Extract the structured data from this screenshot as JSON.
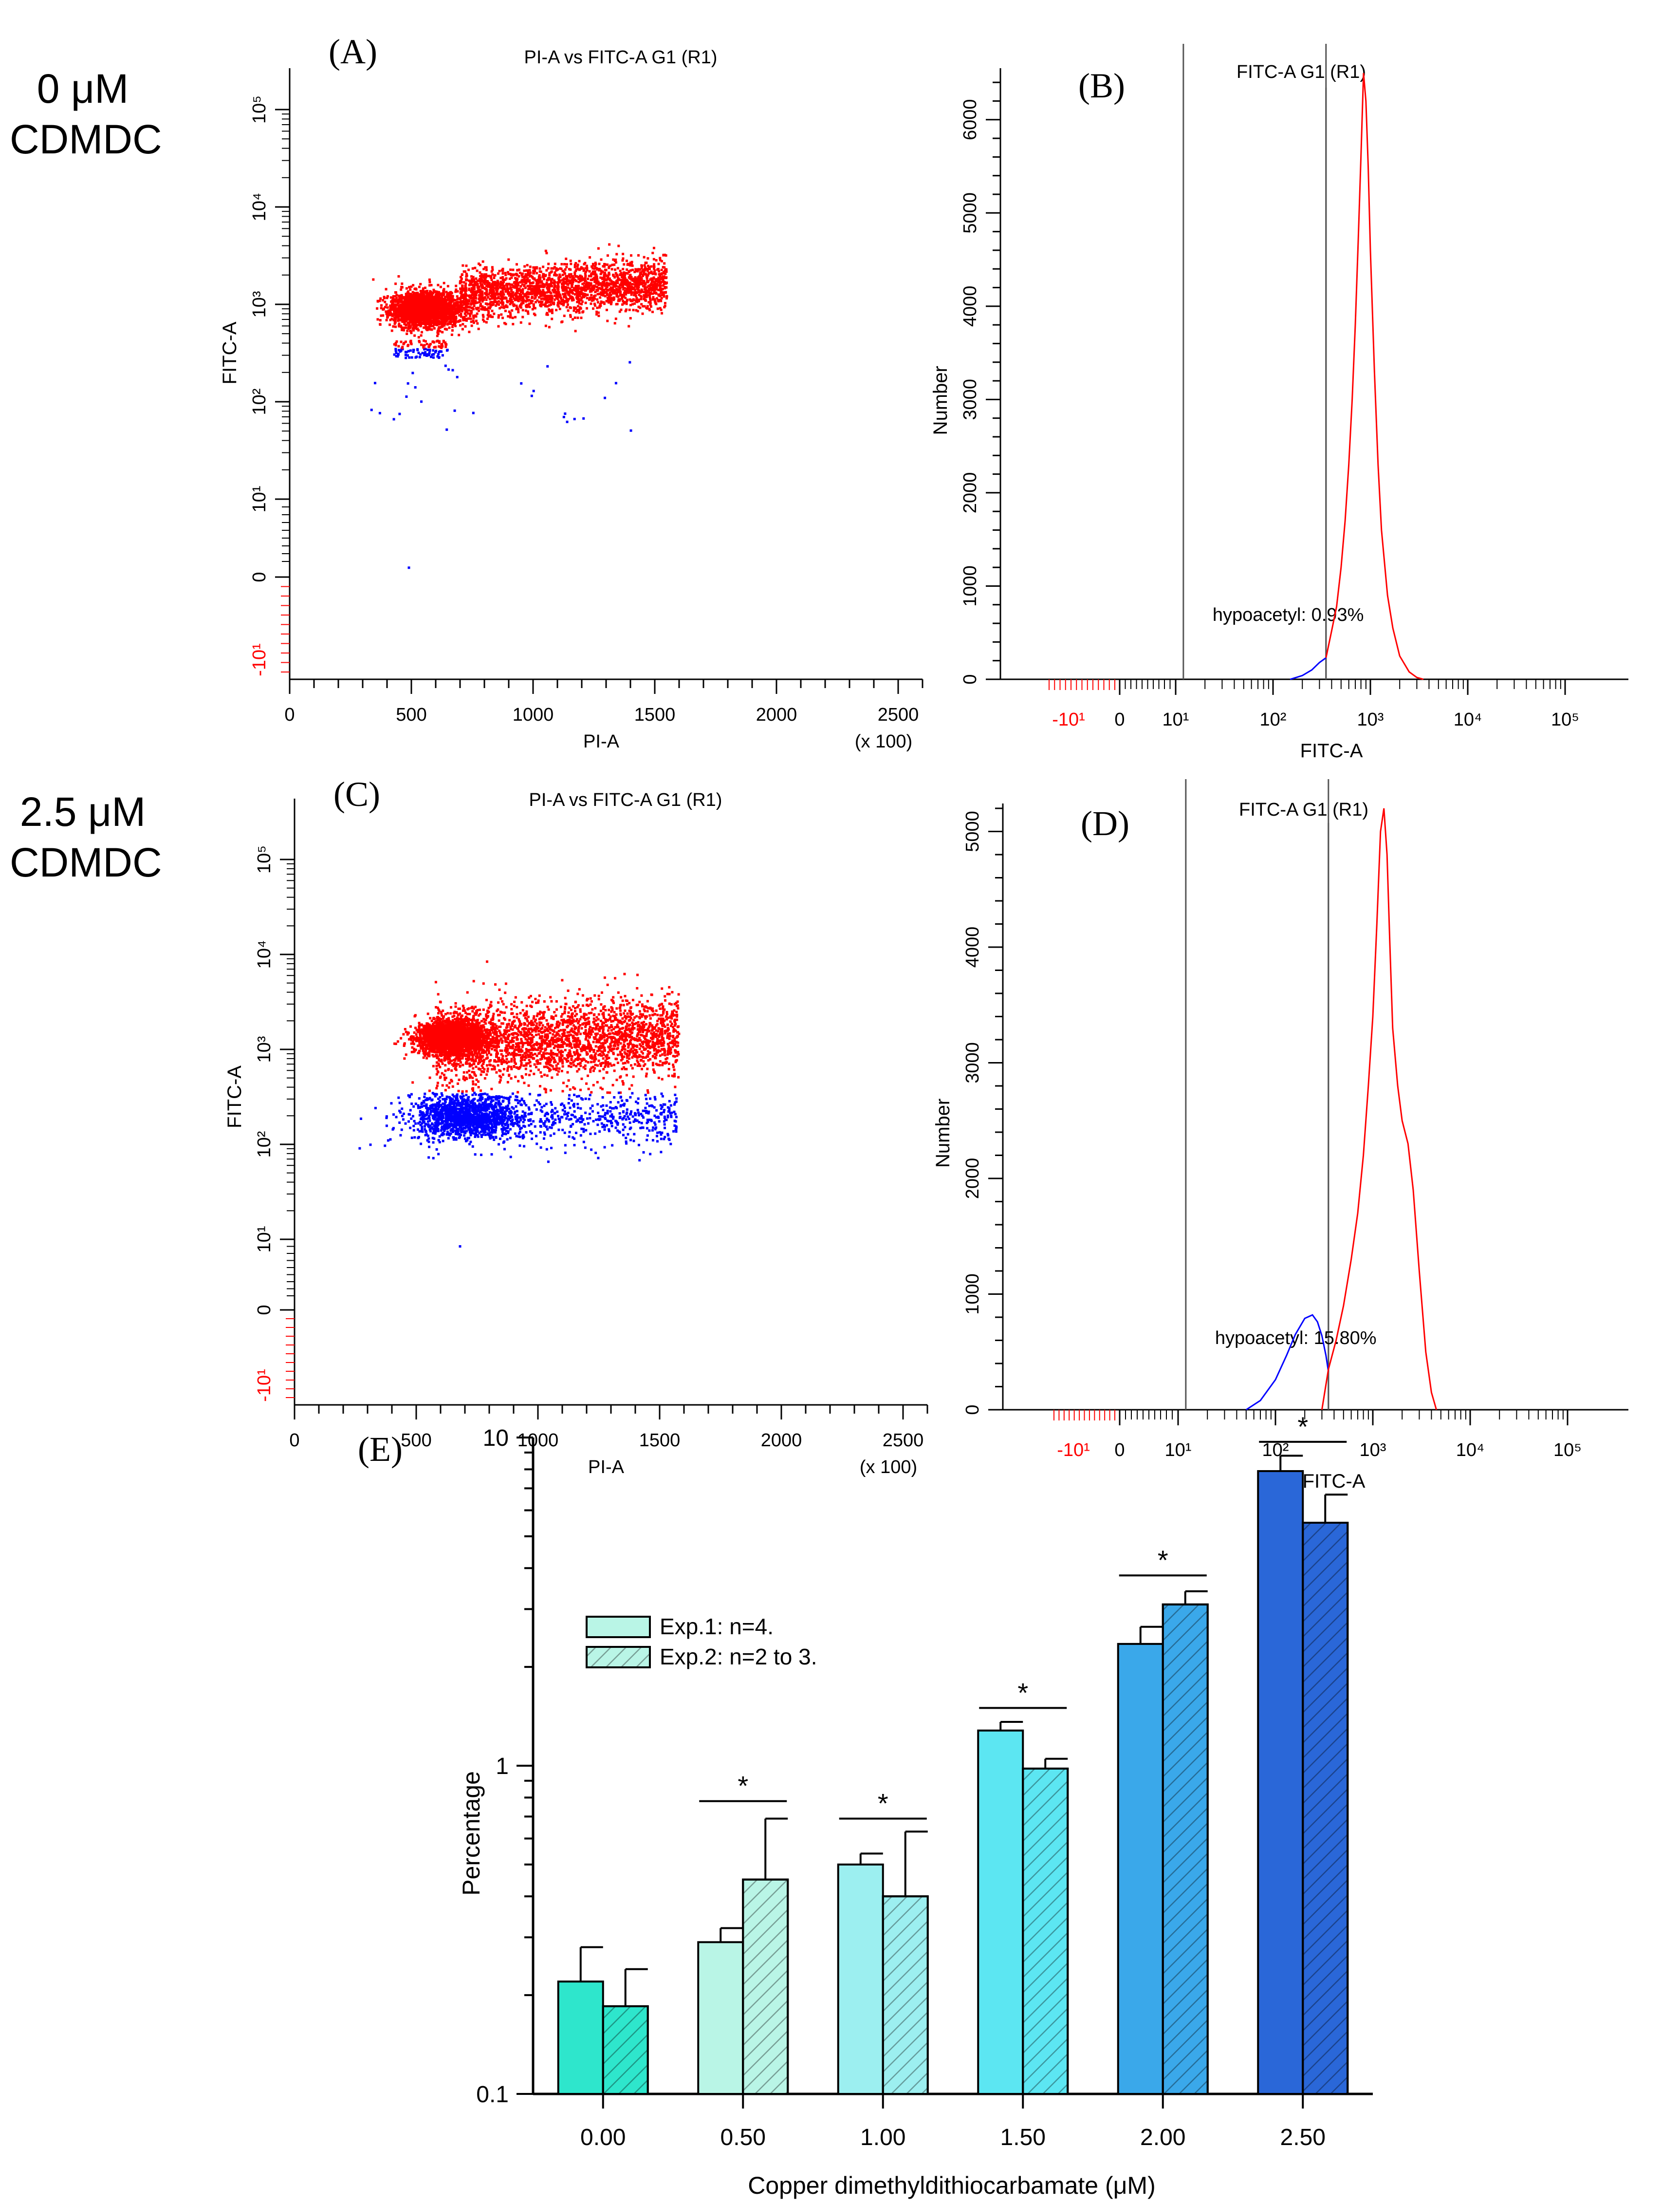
{
  "row_labels": {
    "top": [
      "0 μM",
      "CDMDC"
    ],
    "bottom": [
      "2.5 μM",
      "CDMDC"
    ]
  },
  "chart_data": [
    {
      "id": "A",
      "panel_label": "(A)",
      "type": "scatter",
      "title": "PI-A vs FITC-A  G1 (R1)",
      "xlabel": "PI-A",
      "xlabel_note": "(x 100)",
      "ylabel": "FITC-A",
      "xlim": [
        0,
        2600
      ],
      "x_ticks": [
        "0",
        "500",
        "1000",
        "1500",
        "2000",
        "2500"
      ],
      "y_ticks": [
        "-10¹",
        "0",
        "10¹",
        "10²",
        "10³",
        "10⁴",
        "10⁵"
      ],
      "gate_fitc": 350,
      "colors": {
        "above_gate": "#ff0000",
        "below_gate": "#0000ff"
      }
    },
    {
      "id": "B",
      "panel_label": "(B)",
      "type": "line",
      "title": "FITC-A  G1 (R1)",
      "xlabel": "FITC-A",
      "ylabel": "Number",
      "ylim": [
        0,
        6500
      ],
      "y_ticks": [
        0,
        1000,
        2000,
        3000,
        4000,
        5000,
        6000
      ],
      "x_ticks": [
        "-10¹",
        "0",
        "10¹",
        "10²",
        "10³",
        "10⁴",
        "10⁵"
      ],
      "annotation": "hypoacetyl: 0.93%",
      "gate_lines": [
        12,
        350
      ],
      "series": [
        {
          "color": "#0000ff",
          "x": [
            150,
            200,
            250,
            300,
            350
          ],
          "y": [
            0,
            40,
            100,
            180,
            230
          ]
        },
        {
          "color": "#ff0000",
          "x": [
            350,
            400,
            450,
            500,
            550,
            600,
            650,
            700,
            750,
            800,
            850,
            900,
            950,
            1000,
            1100,
            1200,
            1300,
            1500,
            1700,
            2000,
            2500,
            3000,
            3500
          ],
          "y": [
            230,
            520,
            780,
            1200,
            1700,
            2300,
            3000,
            3800,
            4700,
            5600,
            6500,
            6200,
            5500,
            4600,
            3300,
            2300,
            1600,
            900,
            550,
            250,
            80,
            20,
            0
          ]
        }
      ]
    },
    {
      "id": "C",
      "panel_label": "(C)",
      "type": "scatter",
      "title": "PI-A vs FITC-A  G1 (R1)",
      "xlabel": "PI-A",
      "xlabel_note": "(x 100)",
      "ylabel": "FITC-A",
      "xlim": [
        0,
        2600
      ],
      "x_ticks": [
        "0",
        "500",
        "1000",
        "1500",
        "2000",
        "2500"
      ],
      "y_ticks": [
        "-10¹",
        "0",
        "10¹",
        "10²",
        "10³",
        "10⁴",
        "10⁵"
      ],
      "gate_fitc": 350,
      "colors": {
        "above_gate": "#ff0000",
        "below_gate": "#0000ff"
      }
    },
    {
      "id": "D",
      "panel_label": "(D)",
      "type": "line",
      "title": "FITC-A  G1 (R1)",
      "xlabel": "FITC-A",
      "ylabel": "Number",
      "ylim": [
        0,
        5200
      ],
      "y_ticks": [
        0,
        1000,
        2000,
        3000,
        4000,
        5000
      ],
      "x_ticks": [
        "-10¹",
        "0",
        "10¹",
        "10²",
        "10³",
        "10⁴",
        "10⁵"
      ],
      "annotation": "hypoacetyl: 15.80%",
      "gate_lines": [
        12,
        350
      ],
      "series": [
        {
          "color": "#0000ff",
          "x": [
            50,
            70,
            100,
            130,
            160,
            200,
            240,
            270,
            300,
            330,
            350
          ],
          "y": [
            0,
            80,
            260,
            470,
            650,
            790,
            820,
            760,
            640,
            470,
            330
          ]
        },
        {
          "color": "#ff0000",
          "x": [
            300,
            350,
            420,
            500,
            600,
            700,
            800,
            900,
            1000,
            1100,
            1200,
            1300,
            1400,
            1500,
            1600,
            1800,
            2000,
            2300,
            2600,
            3000,
            3500,
            4000,
            4500
          ],
          "y": [
            0,
            350,
            600,
            900,
            1300,
            1700,
            2200,
            2800,
            3400,
            4200,
            5000,
            5200,
            4800,
            4000,
            3300,
            2800,
            2500,
            2300,
            1900,
            1200,
            500,
            150,
            0
          ]
        }
      ]
    },
    {
      "id": "E",
      "panel_label": "(E)",
      "type": "bar",
      "log_y": true,
      "ylim": [
        0.1,
        10
      ],
      "y_ticks": [
        0.1,
        1,
        10
      ],
      "y_tick_labels": [
        "0.1",
        "1",
        "10"
      ],
      "xlabel": "Copper dimethyldithiocarbamate (μM)",
      "ylabel": "Percentage",
      "categories": [
        "0.00",
        "0.50",
        "1.00",
        "1.50",
        "2.00",
        "2.50"
      ],
      "category_colors": [
        "#2ee6cc",
        "#b9f5e6",
        "#9ceff0",
        "#5ce6f2",
        "#3aa8ea",
        "#2a67d8"
      ],
      "legend_position": "top-left",
      "series": [
        {
          "name": "Exp.1: n=4.",
          "fill": "solid",
          "values": [
            0.22,
            0.29,
            0.5,
            1.28,
            2.35,
            7.9
          ],
          "errors": [
            0.28,
            0.32,
            0.54,
            1.36,
            2.65,
            8.8
          ]
        },
        {
          "name": "Exp.2: n=2 to 3.",
          "fill": "hatched",
          "values": [
            0.185,
            0.45,
            0.4,
            0.98,
            3.1,
            5.5
          ],
          "errors": [
            0.24,
            0.69,
            0.63,
            1.05,
            3.4,
            6.7
          ]
        }
      ],
      "significance": [
        "",
        "*",
        "*",
        "*",
        "*",
        "*"
      ],
      "significance_bar": [
        null,
        0.78,
        0.69,
        1.5,
        3.8,
        9.7
      ]
    }
  ]
}
